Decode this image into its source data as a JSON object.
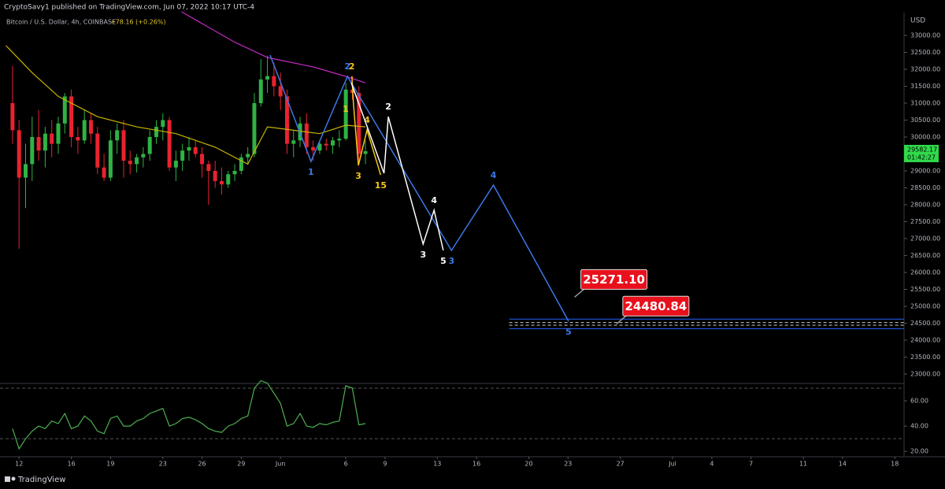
{
  "header": {
    "publisher": "CryptoSavy1 published on TradingView.com, Jun 07, 2022 10:17 UTC-4",
    "symbol": "Bitcoin / U.S. Dollar, 4h, COINBASE",
    "change": "+78.16 (+0.26%)"
  },
  "footer": {
    "brand": "TradingView"
  },
  "chart_data": {
    "type": "candlestick",
    "y_axis_label": "USD",
    "up_color": "#2fb344",
    "down_color": "#e8232f",
    "xlim": [
      "2022-05-10T13:00",
      "2022-07-18T17:00"
    ],
    "ylim": [
      22720,
      34047
    ],
    "xticks": [
      {
        "value": "2022-05-12T00:00",
        "label": "12"
      },
      {
        "value": "2022-05-16T00:00",
        "label": "16"
      },
      {
        "value": "2022-05-19T00:00",
        "label": "19"
      },
      {
        "value": "2022-05-23T00:00",
        "label": "23"
      },
      {
        "value": "2022-05-26T00:00",
        "label": "26"
      },
      {
        "value": "2022-05-29T00:00",
        "label": "29"
      },
      {
        "value": "2022-06-01T00:00",
        "label": "Jun"
      },
      {
        "value": "2022-06-06T00:00",
        "label": "6"
      },
      {
        "value": "2022-06-09T00:00",
        "label": "9"
      },
      {
        "value": "2022-06-13T00:00",
        "label": "13"
      },
      {
        "value": "2022-06-16T00:00",
        "label": "16"
      },
      {
        "value": "2022-06-20T00:00",
        "label": "20"
      },
      {
        "value": "2022-06-23T00:00",
        "label": "23"
      },
      {
        "value": "2022-06-27T00:00",
        "label": "27"
      },
      {
        "value": "2022-07-01T00:00",
        "label": "Jul"
      },
      {
        "value": "2022-07-04T00:00",
        "label": "4"
      },
      {
        "value": "2022-07-07T00:00",
        "label": "7"
      },
      {
        "value": "2022-07-11T00:00",
        "label": "11"
      },
      {
        "value": "2022-07-14T00:00",
        "label": "14"
      },
      {
        "value": "2022-07-18T00:00",
        "label": "18"
      }
    ],
    "yticks": [
      {
        "value": 33000,
        "label": "33000.00"
      },
      {
        "value": 32500,
        "label": "32500.00"
      },
      {
        "value": 32000,
        "label": "32000.00"
      },
      {
        "value": 31500,
        "label": "31500.00"
      },
      {
        "value": 31000,
        "label": "31000.00"
      },
      {
        "value": 30500,
        "label": "30500.00"
      },
      {
        "value": 30000,
        "label": "30000.00"
      },
      {
        "value": 29000,
        "label": "29000.00"
      },
      {
        "value": 28500,
        "label": "28500.00"
      },
      {
        "value": 28000,
        "label": "28000.00"
      },
      {
        "value": 27500,
        "label": "27500.00"
      },
      {
        "value": 27000,
        "label": "27000.00"
      },
      {
        "value": 26500,
        "label": "26500.00"
      },
      {
        "value": 26000,
        "label": "26000.00"
      },
      {
        "value": 25500,
        "label": "25500.00"
      },
      {
        "value": 25000,
        "label": "25000.00"
      },
      {
        "value": 24500,
        "label": "24500.00"
      },
      {
        "value": 24000,
        "label": "24000.00"
      },
      {
        "value": 23500,
        "label": "23500.00"
      },
      {
        "value": 23000,
        "label": "23000.00"
      }
    ],
    "x": [
      "2022-05-11T12:00",
      "2022-05-12T00:00",
      "2022-05-12T12:00",
      "2022-05-13T00:00",
      "2022-05-13T12:00",
      "2022-05-14T00:00",
      "2022-05-14T12:00",
      "2022-05-15T00:00",
      "2022-05-15T12:00",
      "2022-05-16T00:00",
      "2022-05-16T12:00",
      "2022-05-17T00:00",
      "2022-05-17T12:00",
      "2022-05-18T00:00",
      "2022-05-18T12:00",
      "2022-05-19T00:00",
      "2022-05-19T12:00",
      "2022-05-20T00:00",
      "2022-05-20T12:00",
      "2022-05-21T00:00",
      "2022-05-21T12:00",
      "2022-05-22T00:00",
      "2022-05-22T12:00",
      "2022-05-23T00:00",
      "2022-05-23T12:00",
      "2022-05-24T00:00",
      "2022-05-24T12:00",
      "2022-05-25T00:00",
      "2022-05-25T12:00",
      "2022-05-26T00:00",
      "2022-05-26T12:00",
      "2022-05-27T00:00",
      "2022-05-27T12:00",
      "2022-05-28T00:00",
      "2022-05-28T12:00",
      "2022-05-29T00:00",
      "2022-05-29T12:00",
      "2022-05-30T00:00",
      "2022-05-30T12:00",
      "2022-05-31T00:00",
      "2022-05-31T12:00",
      "2022-06-01T00:00",
      "2022-06-01T12:00",
      "2022-06-02T00:00",
      "2022-06-02T12:00",
      "2022-06-03T00:00",
      "2022-06-03T12:00",
      "2022-06-04T00:00",
      "2022-06-04T12:00",
      "2022-06-05T00:00",
      "2022-06-05T12:00",
      "2022-06-06T00:00",
      "2022-06-06T12:00",
      "2022-06-07T00:00",
      "2022-06-07T12:00"
    ],
    "open": [
      31000,
      30200,
      28800,
      29200,
      30000,
      29600,
      30100,
      29800,
      30400,
      31200,
      30000,
      29900,
      30500,
      30100,
      29100,
      28800,
      29900,
      30200,
      29300,
      29200,
      29400,
      29500,
      30000,
      30300,
      30500,
      29100,
      29300,
      29600,
      29700,
      29500,
      29200,
      29000,
      28700,
      28600,
      28900,
      29000,
      29400,
      29500,
      31000,
      31700,
      31800,
      31500,
      31200,
      29800,
      29900,
      30400,
      29700,
      29600,
      29800,
      29750,
      29900,
      29950,
      31400,
      31300,
      29500
    ],
    "high": [
      32100,
      30500,
      29800,
      30600,
      30800,
      30300,
      30500,
      30600,
      31300,
      31400,
      30300,
      30800,
      30700,
      30300,
      29500,
      30200,
      30400,
      30500,
      29600,
      29500,
      29700,
      30200,
      30500,
      30700,
      30600,
      29600,
      29800,
      30000,
      29900,
      29700,
      29300,
      29300,
      29100,
      29000,
      29200,
      29500,
      29700,
      31300,
      32300,
      32400,
      32200,
      31900,
      31400,
      30200,
      30600,
      30700,
      29900,
      29900,
      29950,
      30000,
      30200,
      31600,
      31800,
      31500,
      29900
    ],
    "low": [
      29800,
      26700,
      27900,
      28700,
      29300,
      29100,
      29400,
      29500,
      30100,
      29700,
      29500,
      29800,
      29800,
      28900,
      28700,
      28700,
      29500,
      28800,
      28900,
      28950,
      29100,
      29300,
      29800,
      29900,
      29000,
      28700,
      29000,
      29300,
      29400,
      28800,
      28000,
      28500,
      28300,
      28500,
      28700,
      28900,
      29200,
      29400,
      30900,
      31300,
      31200,
      30800,
      29500,
      29400,
      29700,
      29500,
      29300,
      29500,
      29600,
      29500,
      29700,
      29900,
      31100,
      29300,
      29200
    ],
    "close": [
      30200,
      28800,
      29200,
      30000,
      29600,
      30100,
      29800,
      30400,
      31200,
      30000,
      29900,
      30500,
      30100,
      29100,
      28800,
      29900,
      30200,
      29300,
      29200,
      29400,
      29500,
      30000,
      30300,
      30500,
      29100,
      29300,
      29600,
      29700,
      29500,
      29200,
      29000,
      28700,
      28600,
      28900,
      29000,
      29400,
      29500,
      31000,
      31700,
      31800,
      31500,
      31200,
      29800,
      29900,
      30400,
      29700,
      29600,
      29800,
      29750,
      29900,
      29950,
      31400,
      31300,
      29500,
      29580
    ],
    "last_price": 29582.17,
    "countdown": "01:42:27",
    "overlays": [
      {
        "color": "#c02ac0",
        "x": [
          "2022-05-24T10:00",
          "2022-05-28T12:00",
          "2022-05-31T00:00",
          "2022-06-03T12:00",
          "2022-06-06T00:00",
          "2022-06-07T12:00"
        ],
        "values": [
          33700,
          32800,
          32350,
          32070,
          31790,
          31600
        ]
      },
      {
        "color": "#c8b400",
        "x": [
          "2022-05-11T00:00",
          "2022-05-13T00:00",
          "2022-05-15T00:00",
          "2022-05-18T00:00",
          "2022-05-21T00:00",
          "2022-05-24T00:00",
          "2022-05-27T00:00",
          "2022-05-29T12:00",
          "2022-05-31T00:00",
          "2022-06-02T00:00",
          "2022-06-04T00:00",
          "2022-06-06T00:00",
          "2022-06-07T12:00"
        ],
        "values": [
          32700,
          31900,
          31200,
          30600,
          30300,
          30100,
          29700,
          29200,
          30300,
          30200,
          30100,
          30350,
          30300
        ]
      },
      {
        "color": "#3b78e7",
        "x": [
          "2022-05-31T05:00",
          "2022-06-03T08:00",
          "2022-06-06T03:00",
          "2022-06-14T02:00",
          "2022-06-17T07:00",
          "2022-06-23T01:00"
        ],
        "values": [
          32420,
          29280,
          31790,
          26650,
          28580,
          24560
        ],
        "labels": [
          null,
          "1",
          "2",
          "3",
          "4",
          "5"
        ]
      },
      {
        "color": "#f5c518",
        "x": [
          "2022-06-06T11:00",
          "2022-06-06T14:00",
          "2022-06-06T23:00",
          "2022-06-07T15:00",
          "2022-06-08T16:00"
        ],
        "values": [
          31790,
          31000,
          29160,
          30210,
          28880
        ],
        "labels": [
          "2",
          "1",
          "3",
          "4",
          "15"
        ]
      },
      {
        "color": "#ffffff",
        "x": [
          "2022-06-06T10:00",
          "2022-06-08T22:00",
          "2022-06-09T06:00",
          "2022-06-11T22:00",
          "2022-06-12T18:00",
          "2022-06-13T11:00"
        ],
        "values": [
          31600,
          28930,
          30600,
          26840,
          27840,
          26650
        ],
        "labels": [
          null,
          null,
          "2",
          "3",
          "4",
          "5"
        ]
      }
    ],
    "levels_from": "2022-06-18T12:00",
    "levels": [
      {
        "value": 24620,
        "color": "#2962ff",
        "dashed": false
      },
      {
        "value": 24520,
        "color": "#cccccc",
        "dashed": true
      },
      {
        "value": 24440,
        "color": "#cccccc",
        "dashed": true
      },
      {
        "value": 24340,
        "color": "#2962ff",
        "dashed": false
      }
    ],
    "annotations": [
      {
        "value": 25271.1,
        "label": "25271.10",
        "x": "2022-06-23T12:00"
      },
      {
        "value": 24480.84,
        "label": "24480.84",
        "x": "2022-06-26T17:00"
      }
    ],
    "annotation_color": "#e8101c",
    "indicator": {
      "color": "#4caf50",
      "ylim": [
        17,
        73.75
      ],
      "yticks": [
        {
          "value": 60,
          "label": "60.00"
        },
        {
          "value": 40,
          "label": "40.00"
        },
        {
          "value": 20,
          "label": "20.00"
        }
      ],
      "bands": [
        30,
        70
      ],
      "values": [
        38,
        22,
        30,
        36,
        40,
        38,
        44,
        42,
        50,
        38,
        40,
        48,
        44,
        36,
        34,
        46,
        48,
        40,
        40,
        44,
        46,
        50,
        52,
        54,
        40,
        42,
        46,
        47,
        45,
        42,
        38,
        36,
        35,
        40,
        42,
        46,
        48,
        70,
        76,
        74,
        66,
        58,
        40,
        42,
        50,
        40,
        39,
        42,
        41,
        43,
        44,
        72,
        70,
        41,
        42
      ]
    }
  }
}
